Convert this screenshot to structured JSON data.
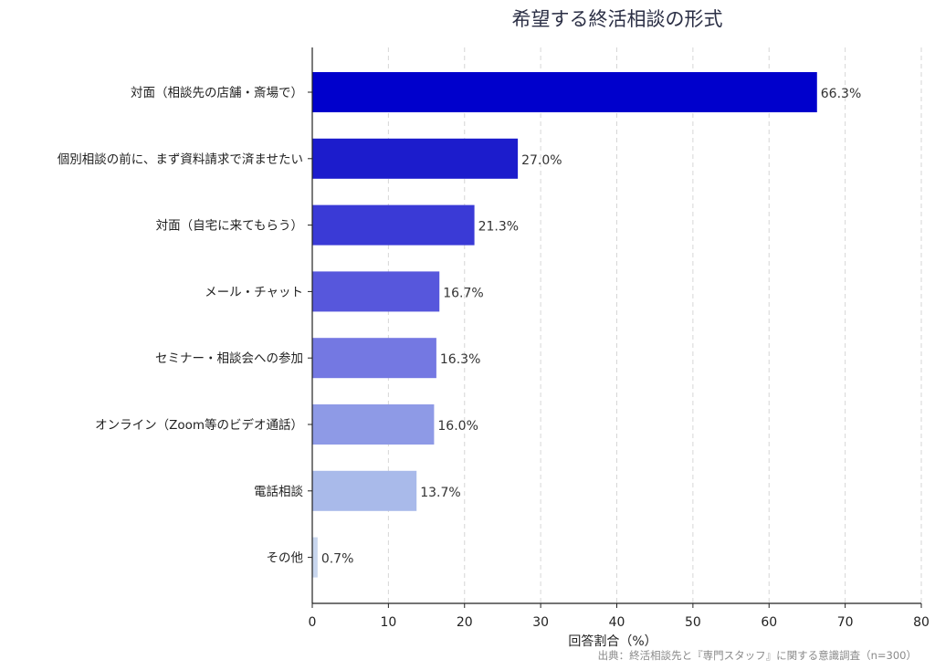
{
  "chart_data": {
    "type": "bar",
    "orientation": "horizontal",
    "title": "希望する終活相談の形式",
    "xlabel": "回答割合（%）",
    "ylabel": "",
    "xlim": [
      0,
      80
    ],
    "xticks": [
      0,
      10,
      20,
      30,
      40,
      50,
      60,
      70,
      80
    ],
    "grid": "vertical-dashed",
    "categories": [
      "対面（相談先の店舗・斎場で）",
      "個別相談の前に、まず資料請求で済ませたい",
      "対面（自宅に来てもらう）",
      "メール・チャット",
      "セミナー・相談会への参加",
      "オンライン（Zoom等のビデオ通話）",
      "電話相談",
      "その他"
    ],
    "values": [
      66.3,
      27.0,
      21.3,
      16.7,
      16.3,
      16.0,
      13.7,
      0.7
    ],
    "value_labels": [
      "66.3%",
      "27.0%",
      "21.3%",
      "16.7%",
      "16.3%",
      "16.0%",
      "13.7%",
      "0.7%"
    ],
    "colors": [
      "#0000cc",
      "#1c1ccc",
      "#3a3ad6",
      "#5757dc",
      "#7478e2",
      "#8e9ae6",
      "#a9baea",
      "#c8d6ee"
    ]
  },
  "source_note": "出典：終活相談先と『専門スタッフ』に関する意識調査（n=300）"
}
